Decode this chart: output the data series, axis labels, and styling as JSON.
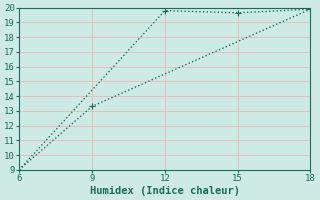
{
  "xlabel": "Humidex (Indice chaleur)",
  "bg_color": "#ceeae4",
  "grid_color": "#e8b8b8",
  "line_color": "#1a6b5a",
  "line1_x": [
    6,
    9,
    18
  ],
  "line1_y": [
    9,
    13.3,
    19.9
  ],
  "line2_x": [
    6,
    12,
    15,
    18
  ],
  "line2_y": [
    9,
    19.8,
    19.65,
    19.9
  ],
  "xlim": [
    6,
    18
  ],
  "ylim": [
    9,
    20
  ],
  "xticks": [
    6,
    9,
    12,
    15,
    18
  ],
  "yticks": [
    9,
    10,
    11,
    12,
    13,
    14,
    15,
    16,
    17,
    18,
    19,
    20
  ],
  "markersize": 3,
  "linewidth": 1.0,
  "tick_fontsize": 6.5,
  "label_fontsize": 7.5
}
